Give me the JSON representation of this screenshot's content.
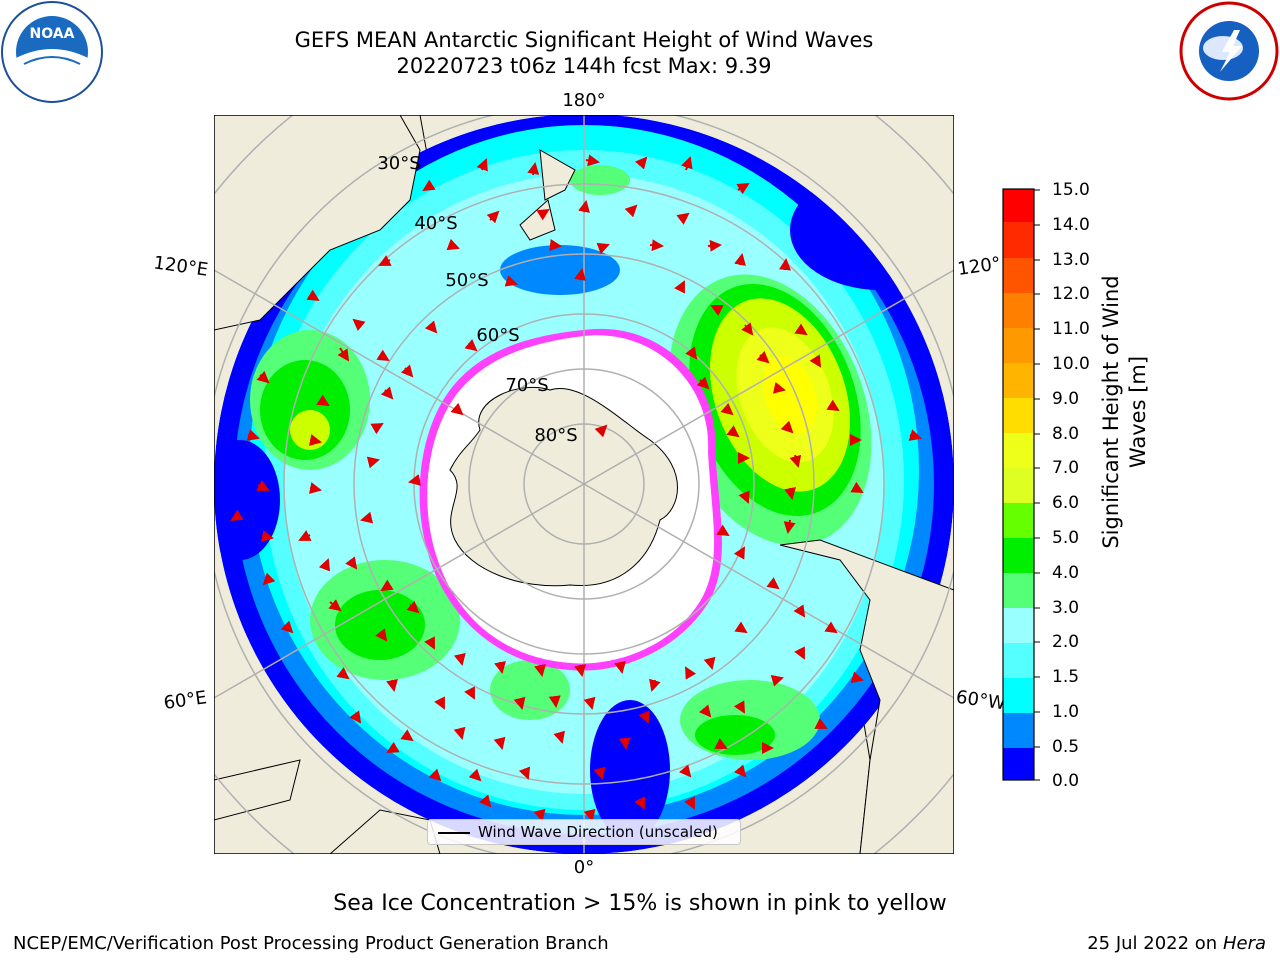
{
  "title": {
    "line1": "GEFS MEAN Antarctic Significant Height of Wind Waves",
    "line2": "20220723 t06z 144h fcst   Max: 9.39"
  },
  "map": {
    "projection": "south-polar-stereographic",
    "longitude_labels": [
      "180°",
      "120°E",
      "120°",
      "60°E",
      "60°W",
      "0°"
    ],
    "latitude_labels": [
      "30°S",
      "40°S",
      "50°S",
      "60°S",
      "70°S",
      "80°S"
    ],
    "legend_label": "Wind Wave Direction (unscaled)",
    "colors": {
      "land": "#efecdc",
      "ice_edge": "#ff40ff",
      "ice_interior": "#ffffff",
      "arrows": "#e00000"
    }
  },
  "colorbar": {
    "label": "Significant Height of Wind Waves [m]",
    "tick_labels": [
      "15.0",
      "14.0",
      "13.0",
      "12.0",
      "11.0",
      "10.0",
      "9.0",
      "8.0",
      "7.0",
      "6.0",
      "5.0",
      "4.0",
      "3.0",
      "2.0",
      "1.5",
      "1.0",
      "0.5",
      "0.0"
    ],
    "colors_top_to_bottom": [
      "#ff0000",
      "#ff2a00",
      "#ff5500",
      "#ff7f00",
      "#ff9900",
      "#ffb400",
      "#ffdd00",
      "#ffff00",
      "#eeff1a",
      "#ddff22",
      "#ccff00",
      "#66ff00",
      "#00ee00",
      "#55ff77",
      "#99ffff",
      "#55ffff",
      "#00ffff",
      "#0088ff",
      "#0000ff"
    ]
  },
  "notes": {
    "sea_ice": "Sea Ice Concentration > 15% is shown in pink to yellow",
    "producer": "NCEP/EMC/Verification Post Processing Product Generation Branch",
    "date_prefix": "25 Jul 2022 on ",
    "machine": "Hera"
  },
  "logos": {
    "left": "noaa-logo",
    "right": "national-weather-service-logo"
  }
}
